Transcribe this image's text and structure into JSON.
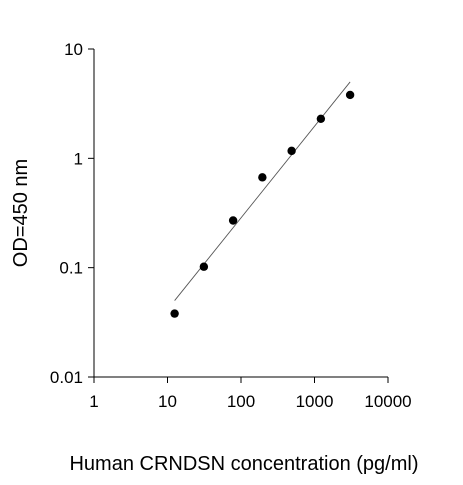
{
  "chart_data": {
    "type": "scatter",
    "title": "",
    "xlabel": "Human CRNDSN concentration (pg/ml)",
    "ylabel": "OD=450 nm",
    "xscale": "log",
    "yscale": "log",
    "xlim": [
      1,
      10000
    ],
    "ylim": [
      0.01,
      10
    ],
    "x_ticks": [
      1,
      10,
      100,
      1000,
      10000
    ],
    "x_tick_labels": [
      "1",
      "10",
      "100",
      "1000",
      "10000"
    ],
    "y_ticks": [
      0.01,
      0.1,
      1,
      10
    ],
    "y_tick_labels": [
      "0.01",
      "0.1",
      "1",
      "10"
    ],
    "grid": false,
    "legend": "none",
    "series": [
      {
        "x": [
          12.5,
          31.25,
          78.125,
          195.3,
          488.3,
          1220.7,
          3051.8
        ],
        "y": [
          0.038,
          0.102,
          0.27,
          0.67,
          1.17,
          2.3,
          3.8
        ]
      }
    ],
    "trendline": {
      "x": [
        12.5,
        3051.8
      ],
      "y": [
        0.05,
        5.0
      ]
    },
    "colors": {
      "points": "#000000",
      "line": "#555555",
      "axes": "#000000"
    }
  }
}
